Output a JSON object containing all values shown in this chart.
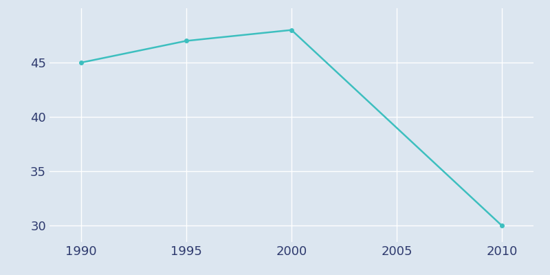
{
  "years": [
    1990,
    1995,
    2000,
    2010
  ],
  "population": [
    45,
    47,
    48,
    30
  ],
  "line_color": "#3dbfbf",
  "background_color": "#dce6f0",
  "axes_background_color": "#dce6f0",
  "figure_background_color": "#dce6f0",
  "grid_color": "#ffffff",
  "tick_label_color": "#2e3a6e",
  "xlabel": "",
  "ylabel": "",
  "xlim": [
    1988.5,
    2011.5
  ],
  "ylim": [
    28.5,
    50.0
  ],
  "xticks": [
    1990,
    1995,
    2000,
    2005,
    2010
  ],
  "yticks": [
    30,
    35,
    40,
    45
  ],
  "line_width": 1.8,
  "title_fontsize": 14,
  "tick_fontsize": 13,
  "marker": "o",
  "marker_size": 4
}
